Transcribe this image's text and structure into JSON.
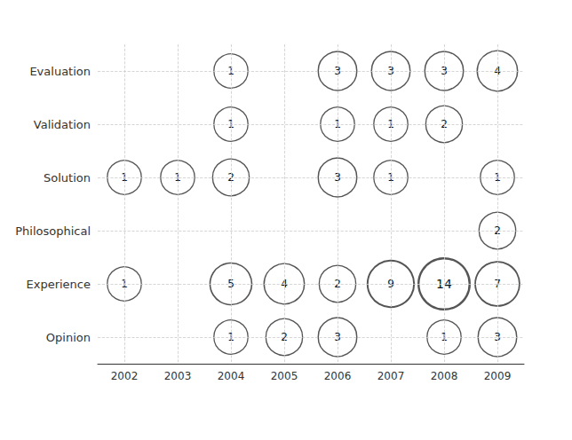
{
  "chart_data": {
    "type": "bubble",
    "categories": [
      "2002",
      "2003",
      "2004",
      "2005",
      "2006",
      "2007",
      "2008",
      "2009"
    ],
    "series": [
      {
        "name": "Evaluation",
        "values": [
          null,
          null,
          1,
          null,
          3,
          3,
          3,
          4
        ]
      },
      {
        "name": "Validation",
        "values": [
          null,
          null,
          1,
          null,
          1,
          1,
          2,
          null
        ]
      },
      {
        "name": "Solution",
        "values": [
          1,
          1,
          2,
          null,
          3,
          1,
          null,
          1
        ]
      },
      {
        "name": "Philosophical",
        "values": [
          null,
          null,
          null,
          null,
          null,
          null,
          null,
          2
        ]
      },
      {
        "name": "Experience",
        "values": [
          1,
          null,
          5,
          4,
          2,
          9,
          14,
          7
        ]
      },
      {
        "name": "Opinion",
        "values": [
          null,
          null,
          1,
          2,
          3,
          null,
          1,
          3
        ]
      }
    ],
    "color": "#555555",
    "data_labels": true,
    "grid": true
  }
}
